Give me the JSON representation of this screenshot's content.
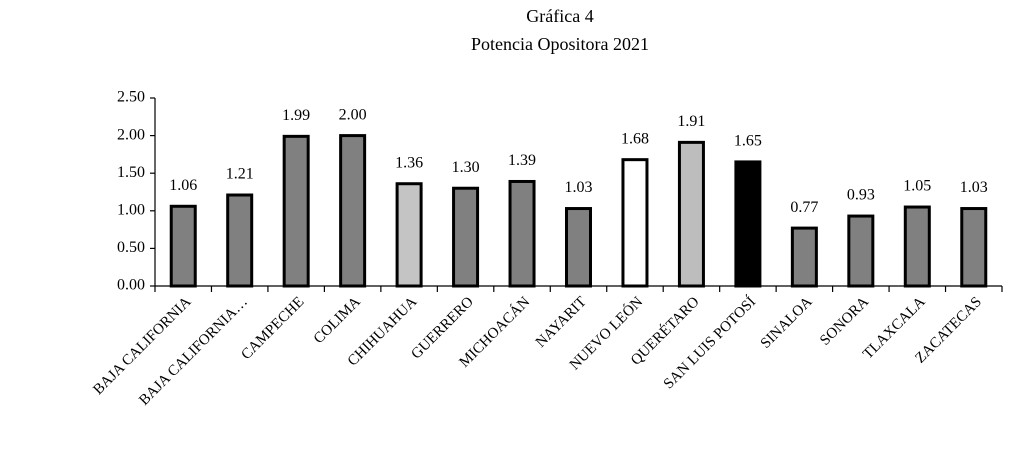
{
  "chart_data": {
    "type": "bar",
    "title": "Gráfica 4",
    "subtitle": "Potencia Opositora 2021",
    "categories": [
      "BAJA CALIFORNIA",
      "BAJA CALIFORNIA…",
      "CAMPECHE",
      "COLIMA",
      "CHIHUAHUA",
      "GUERRERO",
      "MICHOACÁN",
      "NAYARIT",
      "NUEVO LEÓN",
      "QUERÉTARO",
      "SAN LUIS POTOSÍ",
      "SINALOA",
      "SONORA",
      "TLAXCALA",
      "ZACATECAS"
    ],
    "values": [
      1.06,
      1.21,
      1.99,
      2.0,
      1.36,
      1.3,
      1.39,
      1.03,
      1.68,
      1.91,
      1.65,
      0.77,
      0.93,
      1.05,
      1.03
    ],
    "value_labels": [
      "1.06",
      "1.21",
      "1.99",
      "2.00",
      "1.36",
      "1.30",
      "1.39",
      "1.03",
      "1.68",
      "1.91",
      "1.65",
      "0.77",
      "0.93",
      "1.05",
      "1.03"
    ],
    "colors": [
      "#808080",
      "#808080",
      "#808080",
      "#808080",
      "#c4c4c4",
      "#808080",
      "#808080",
      "#808080",
      "#ffffff",
      "#bdbdbd",
      "#000000",
      "#808080",
      "#808080",
      "#808080",
      "#808080"
    ],
    "ylim": [
      0,
      2.5
    ],
    "yticks": [
      {
        "value": 0,
        "label": "0.00"
      },
      {
        "value": 0.5,
        "label": "0.50"
      },
      {
        "value": 1,
        "label": "1.00"
      },
      {
        "value": 1.5,
        "label": "1.50"
      },
      {
        "value": 2,
        "label": "2.00"
      },
      {
        "value": 2.5,
        "label": "2.50"
      }
    ],
    "grid": false
  }
}
